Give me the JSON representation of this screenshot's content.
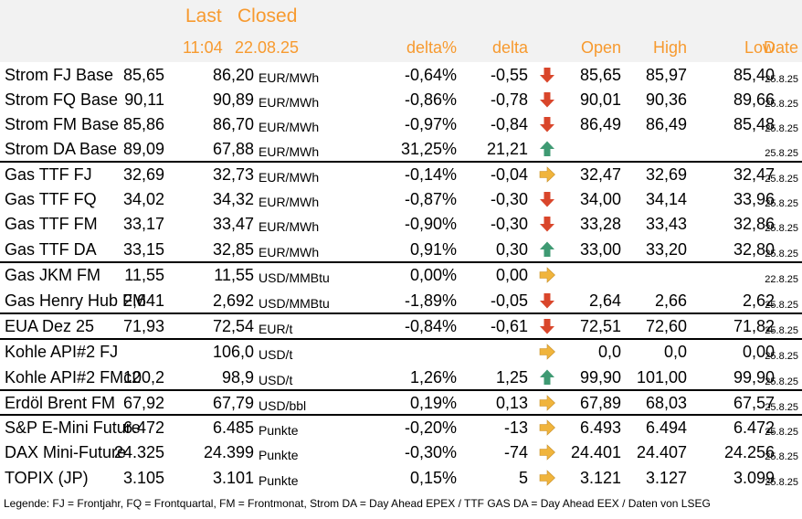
{
  "header": {
    "last": "Last",
    "closed": "Closed",
    "last_time": "11:04",
    "closed_date": "22.08.25",
    "delta_pct": "delta%",
    "delta": "delta",
    "open": "Open",
    "high": "High",
    "low": "Low",
    "date": "Date"
  },
  "colors": {
    "header_text": "#f79a2f",
    "header_bg": "#f2f2f2",
    "down": "#d9462b",
    "up": "#3f9a73",
    "flat": "#f0b43c"
  },
  "rows": [
    {
      "name": "Strom FJ Base",
      "last": "85,65",
      "closed": "86,20",
      "unit": "EUR/MWh",
      "dp": "-0,64%",
      "dl": "-0,55",
      "trend": "down",
      "open": "85,65",
      "high": "85,97",
      "low": "85,40",
      "date": "25.8.25"
    },
    {
      "name": "Strom FQ Base",
      "last": "90,11",
      "closed": "90,89",
      "unit": "EUR/MWh",
      "dp": "-0,86%",
      "dl": "-0,78",
      "trend": "down",
      "open": "90,01",
      "high": "90,36",
      "low": "89,66",
      "date": "25.8.25"
    },
    {
      "name": "Strom FM Base",
      "last": "85,86",
      "closed": "86,70",
      "unit": "EUR/MWh",
      "dp": "-0,97%",
      "dl": "-0,84",
      "trend": "down",
      "open": "86,49",
      "high": "86,49",
      "low": "85,48",
      "date": "25.8.25"
    },
    {
      "name": "Strom DA Base",
      "last": "89,09",
      "closed": "67,88",
      "unit": "EUR/MWh",
      "dp": "31,25%",
      "dl": "21,21",
      "trend": "up",
      "open": "",
      "high": "",
      "low": "",
      "date": "25.8.25"
    },
    {
      "name": "Gas TTF FJ",
      "last": "32,69",
      "closed": "32,73",
      "unit": "EUR/MWh",
      "dp": "-0,14%",
      "dl": "-0,04",
      "trend": "flat",
      "open": "32,47",
      "high": "32,69",
      "low": "32,47",
      "date": "25.8.25"
    },
    {
      "name": "Gas TTF FQ",
      "last": "34,02",
      "closed": "34,32",
      "unit": "EUR/MWh",
      "dp": "-0,87%",
      "dl": "-0,30",
      "trend": "down",
      "open": "34,00",
      "high": "34,14",
      "low": "33,96",
      "date": "25.8.25"
    },
    {
      "name": "Gas TTF FM",
      "last": "33,17",
      "closed": "33,47",
      "unit": "EUR/MWh",
      "dp": "-0,90%",
      "dl": "-0,30",
      "trend": "down",
      "open": "33,28",
      "high": "33,43",
      "low": "32,86",
      "date": "25.8.25"
    },
    {
      "name": "Gas TTF DA",
      "last": "33,15",
      "closed": "32,85",
      "unit": "EUR/MWh",
      "dp": "0,91%",
      "dl": "0,30",
      "trend": "up",
      "open": "33,00",
      "high": "33,20",
      "low": "32,80",
      "date": "25.8.25"
    },
    {
      "name": "Gas JKM FM",
      "last": "11,55",
      "closed": "11,55",
      "unit": "USD/MMBtu",
      "dp": "0,00%",
      "dl": "0,00",
      "trend": "flat",
      "open": "",
      "high": "",
      "low": "",
      "date": "22.8.25"
    },
    {
      "name": "Gas Henry Hub FM",
      "last": "2,641",
      "closed": "2,692",
      "unit": "USD/MMBtu",
      "dp": "-1,89%",
      "dl": "-0,05",
      "trend": "down",
      "open": "2,64",
      "high": "2,66",
      "low": "2,62",
      "date": "25.8.25"
    },
    {
      "name": "EUA Dez 25",
      "last": "71,93",
      "closed": "72,54",
      "unit": "EUR/t",
      "dp": "-0,84%",
      "dl": "-0,61",
      "trend": "down",
      "open": "72,51",
      "high": "72,60",
      "low": "71,82",
      "date": "25.8.25"
    },
    {
      "name": "Kohle API#2 FJ",
      "last": "",
      "closed": "106,0",
      "unit": "USD/t",
      "dp": "",
      "dl": "",
      "trend": "flat",
      "open": "0,0",
      "high": "0,0",
      "low": "0,00",
      "date": "25.8.25"
    },
    {
      "name": "Kohle API#2 FMc2",
      "last": "100,2",
      "closed": "98,9",
      "unit": "USD/t",
      "dp": "1,26%",
      "dl": "1,25",
      "trend": "up",
      "open": "99,90",
      "high": "101,00",
      "low": "99,90",
      "date": "25.8.25"
    },
    {
      "name": "Erdöl Brent FM",
      "last": "67,92",
      "closed": "67,79",
      "unit": "USD/bbl",
      "dp": "0,19%",
      "dl": "0,13",
      "trend": "flat",
      "open": "67,89",
      "high": "68,03",
      "low": "67,57",
      "date": "25.8.25"
    },
    {
      "name": "S&P E-Mini Future",
      "last": "6.472",
      "closed": "6.485",
      "unit": "Punkte",
      "dp": "-0,20%",
      "dl": "-13",
      "trend": "flat",
      "open": "6.493",
      "high": "6.494",
      "low": "6.472",
      "date": "25.8.25"
    },
    {
      "name": "DAX Mini-Future",
      "last": "24.325",
      "closed": "24.399",
      "unit": "Punkte",
      "dp": "-0,30%",
      "dl": "-74",
      "trend": "flat",
      "open": "24.401",
      "high": "24.407",
      "low": "24.256",
      "date": "25.8.25"
    },
    {
      "name": "TOPIX (JP)",
      "last": "3.105",
      "closed": "3.101",
      "unit": "Punkte",
      "dp": "0,15%",
      "dl": "5",
      "trend": "flat",
      "open": "3.121",
      "high": "3.127",
      "low": "3.099",
      "date": "25.8.25"
    }
  ],
  "legend": "Legende: FJ = Frontjahr, FQ = Frontquartal, FM = Frontmonat, Strom DA = Day Ahead EPEX / TTF GAS DA = Day Ahead EEX / Daten von LSEG"
}
